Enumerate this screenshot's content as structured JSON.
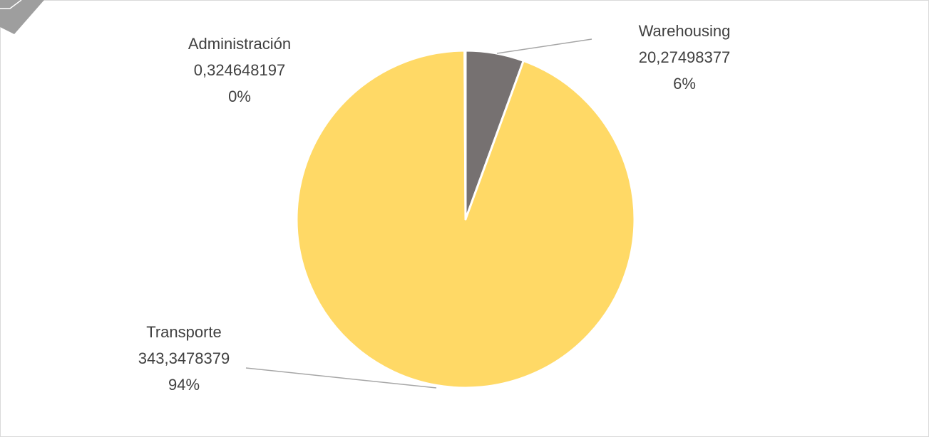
{
  "chart_data": {
    "type": "pie",
    "categories": [
      "Warehousing",
      "Transporte",
      "Administración"
    ],
    "values": [
      20.27498377,
      343.3478379,
      0.324648197
    ],
    "value_labels": [
      "20,27498377",
      "343,3478379",
      "0,324648197"
    ],
    "percent_labels": [
      "6%",
      "94%",
      "0%"
    ],
    "colors": [
      "#767171",
      "#ffd966",
      "#a5a5a5"
    ]
  }
}
